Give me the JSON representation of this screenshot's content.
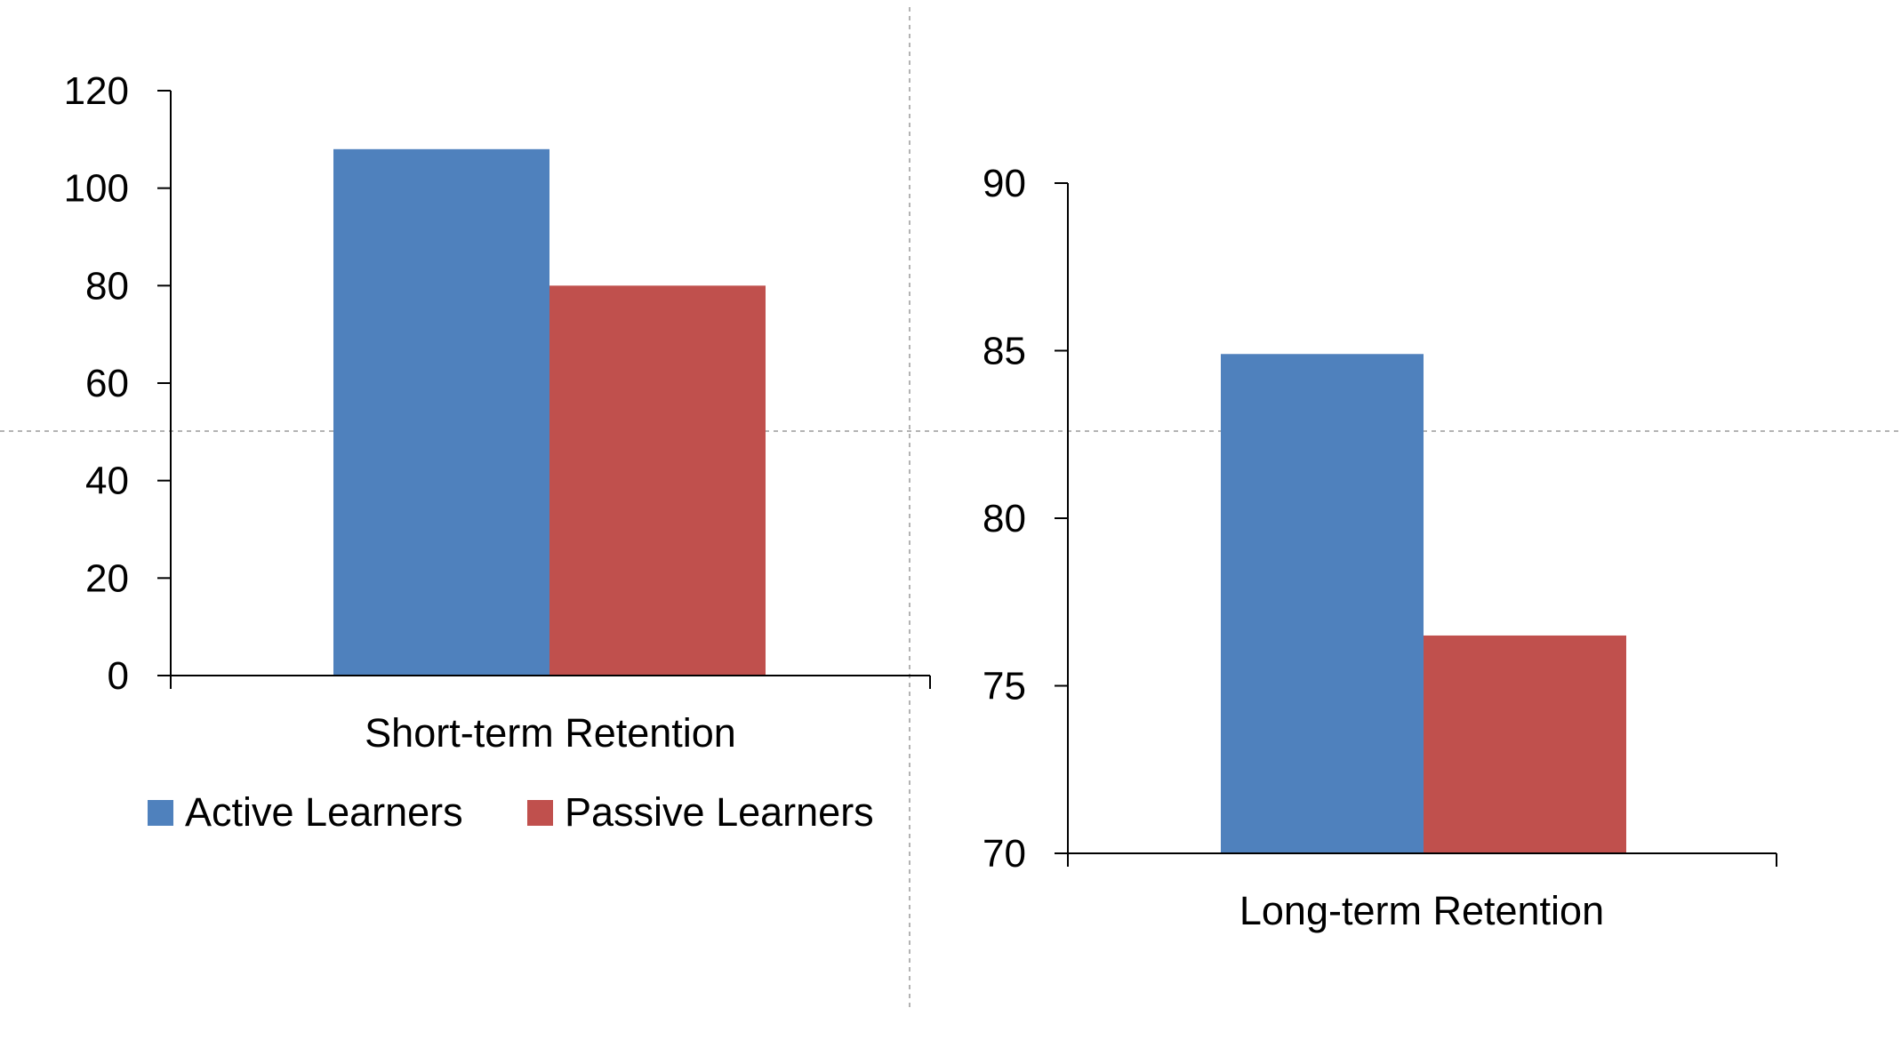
{
  "colors": {
    "active": "#4F81BD",
    "passive": "#C0504D"
  },
  "legend": {
    "active_label": "Active Learners",
    "passive_label": "Passive Learners"
  },
  "chart_data": [
    {
      "type": "bar",
      "categories": [
        "Short-term Retention"
      ],
      "series": [
        {
          "name": "Active Learners",
          "values": [
            108
          ]
        },
        {
          "name": "Passive Learners",
          "values": [
            80
          ]
        }
      ],
      "ylim": [
        0,
        120
      ],
      "yticks": [
        "0",
        "20",
        "40",
        "60",
        "80",
        "100",
        "120"
      ],
      "xlabel": "Short-term Retention",
      "legend": "bottom",
      "grid": false
    },
    {
      "type": "bar",
      "categories": [
        "Long-term Retention"
      ],
      "series": [
        {
          "name": "Active Learners",
          "values": [
            84.9
          ]
        },
        {
          "name": "Passive Learners",
          "values": [
            76.5
          ]
        }
      ],
      "ylim": [
        70,
        90
      ],
      "yticks": [
        "70",
        "75",
        "80",
        "85",
        "90"
      ],
      "xlabel": "Long-term Retention",
      "legend": "none",
      "grid": false
    }
  ]
}
